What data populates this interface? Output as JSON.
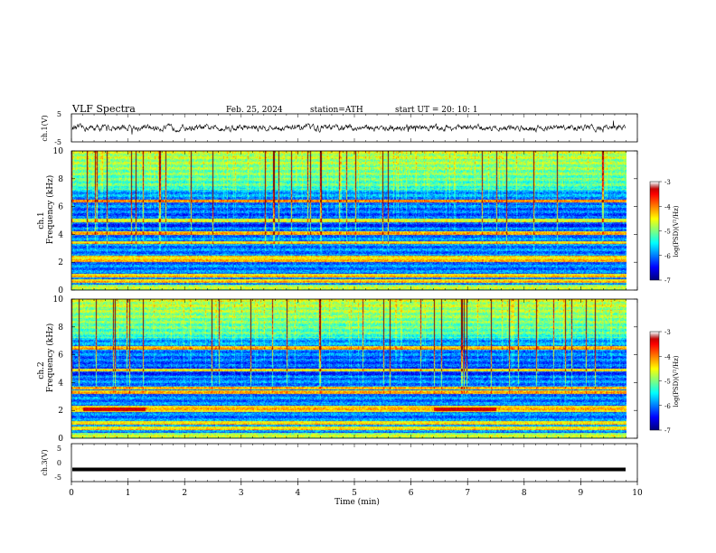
{
  "header": {
    "title": "VLF  Spectra",
    "date": "Feb. 25, 2024",
    "station": "station=ATH",
    "start": "start  UT  =    20: 10: 1"
  },
  "chart_data": [
    {
      "type": "line",
      "name": "ch1-waveform",
      "ylabel": "ch.1(V)",
      "ylim": [
        -5,
        5
      ],
      "yticks": [
        "5",
        "-5"
      ],
      "xlim": [
        0,
        10
      ],
      "color": "#000000",
      "note_values": "noisy waveform centred near 0 V, amplitude about ±1.5 V with sparse spikes"
    },
    {
      "type": "heatmap",
      "name": "ch1-spectrogram",
      "ylabel_line1": "ch.1",
      "ylabel_line2": "Frequency  (kHz)",
      "ylim": [
        0,
        10
      ],
      "yticks": [
        "0",
        "2",
        "4",
        "6",
        "8",
        "10"
      ],
      "xlim": [
        0,
        9.8
      ],
      "bands_khz": [
        0.6,
        1.0,
        2.1,
        2.3,
        3.4,
        4.1,
        5.0,
        6.4
      ],
      "colorbar": {
        "label": "log(PSD)(V²/Hz)",
        "ticks": [
          "-3",
          "-4",
          "-5",
          "-6",
          "-7"
        ],
        "range": [
          -7,
          -3
        ]
      }
    },
    {
      "type": "heatmap",
      "name": "ch2-spectrogram",
      "ylabel_line1": "ch.2",
      "ylabel_line2": "Frequency  (kHz)",
      "ylim": [
        0,
        10
      ],
      "yticks": [
        "0",
        "2",
        "4",
        "6",
        "8",
        "10"
      ],
      "xlim": [
        0,
        9.8
      ],
      "bands_khz": [
        0.7,
        1.1,
        2.0,
        2.2,
        3.3,
        3.6,
        4.9,
        6.5
      ],
      "red_segments": [
        [
          0.2,
          1.3
        ],
        [
          6.4,
          7.5
        ]
      ],
      "colorbar": {
        "label": "log(PSD)(V²/Hz)",
        "ticks": [
          "-3",
          "-4",
          "-5",
          "-6",
          "-7"
        ],
        "range": [
          -7,
          -3
        ]
      }
    },
    {
      "type": "line",
      "name": "ch3-waveform",
      "ylabel": "ch.3(V)",
      "ylim": [
        -5,
        5
      ],
      "yticks": [
        "5",
        "0",
        "-5"
      ],
      "xlim": [
        0,
        10
      ],
      "value": -1.8,
      "color": "#000000"
    }
  ],
  "xaxis": {
    "label": "Time  (min)",
    "ticks": [
      "0",
      "1",
      "2",
      "3",
      "4",
      "5",
      "6",
      "7",
      "8",
      "9",
      "10"
    ],
    "range": [
      0,
      10
    ]
  }
}
